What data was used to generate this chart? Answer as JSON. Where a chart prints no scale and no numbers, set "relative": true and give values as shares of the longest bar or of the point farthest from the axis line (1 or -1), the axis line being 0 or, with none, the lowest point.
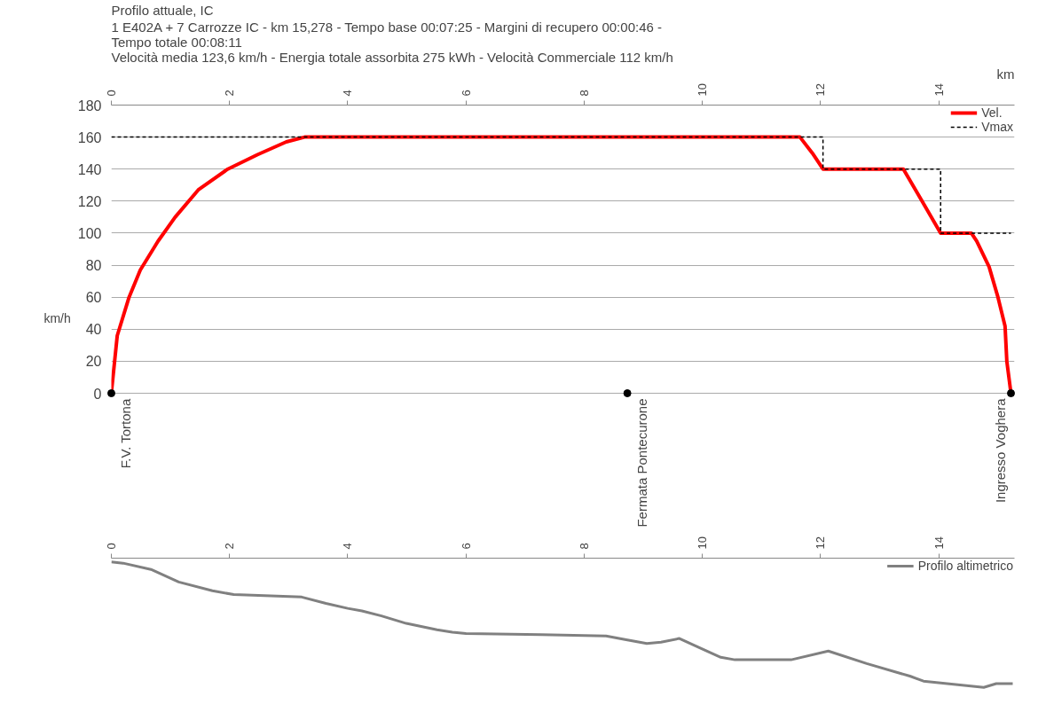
{
  "chart_data": [
    {
      "type": "line",
      "title": "Profilo attuale, IC",
      "subtitle": "1 E402A + 7 Carrozze IC  -  km 15,278  -  Tempo base 00:07:25  -  Margini di recupero 00:00:46  -  Tempo totale 00:08:11\nVelocità media 123,6 km/h  -  Energia totale assorbita 275 kWh  -  Velocità Commerciale 112 km/h",
      "xlabel": "km",
      "ylabel": "km/h",
      "xlim": [
        0,
        15.28
      ],
      "xticks": [
        0,
        2,
        4,
        6,
        8,
        10,
        12,
        14
      ],
      "ylim": [
        0,
        180
      ],
      "yticks": [
        0,
        20,
        40,
        60,
        80,
        100,
        120,
        140,
        160,
        180
      ],
      "grid": "y",
      "legend": "top right",
      "series": [
        {
          "name": "Vel.",
          "type": "line",
          "color": "#ff0000",
          "line_style": "solid",
          "x": [
            0,
            0.1,
            0.3,
            0.49,
            0.79,
            1.08,
            1.47,
            1.97,
            2.47,
            2.96,
            3.27,
            11.65,
            11.86,
            12.04,
            13.4,
            13.7,
            14.03,
            14.55,
            14.64,
            14.85,
            15.0,
            15.12,
            15.15,
            15.22
          ],
          "values": [
            0,
            36,
            60,
            77,
            95,
            110,
            127,
            140,
            149,
            157,
            160,
            160,
            150,
            140,
            140,
            121,
            100,
            100,
            95,
            79,
            60,
            42,
            20,
            0
          ]
        },
        {
          "name": "Vmax",
          "type": "step",
          "color": "#000000",
          "line_style": "dashed",
          "x": [
            0,
            12.04,
            14.03,
            15.22
          ],
          "values": [
            160,
            140,
            100,
            100
          ]
        },
        {
          "type": "scatter",
          "color": "#000000",
          "marker": "circle",
          "x": [
            0,
            8.73,
            15.22
          ],
          "values": [
            0,
            0,
            0
          ]
        }
      ],
      "annotations": [
        {
          "text": "F.V. Tortona",
          "x": 0,
          "y": 0
        },
        {
          "text": "Fermata Pontecurone",
          "x": 8.73,
          "y": 0
        },
        {
          "text": "Ingresso Voghera",
          "x": 15.22,
          "y": 0
        }
      ]
    },
    {
      "type": "line",
      "relative": true,
      "xlim": [
        0,
        15.28
      ],
      "xticks": [
        0,
        2,
        4,
        6,
        8,
        10,
        12,
        14
      ],
      "tick_labels": "x",
      "grid": false,
      "legend": "top right",
      "series": [
        {
          "name": "Profilo altimetrico",
          "color": "#808080",
          "x": [
            0,
            0.2,
            0.67,
            1.14,
            1.71,
            2.07,
            3.22,
            3.63,
            4.0,
            4.24,
            4.57,
            4.99,
            5.51,
            5.77,
            6.0,
            7.27,
            8.37,
            8.71,
            9.06,
            9.3,
            9.61,
            9.93,
            10.31,
            10.55,
            11.5,
            12.13,
            12.78,
            13.51,
            13.74,
            14.76,
            14.97,
            15.25
          ],
          "values": [
            1.0,
            0.99,
            0.94,
            0.84,
            0.77,
            0.74,
            0.72,
            0.67,
            0.63,
            0.61,
            0.57,
            0.51,
            0.46,
            0.44,
            0.43,
            0.42,
            0.41,
            0.38,
            0.35,
            0.36,
            0.39,
            0.32,
            0.24,
            0.22,
            0.22,
            0.29,
            0.19,
            0.09,
            0.05,
            0,
            0.03,
            0.03
          ]
        }
      ]
    }
  ]
}
